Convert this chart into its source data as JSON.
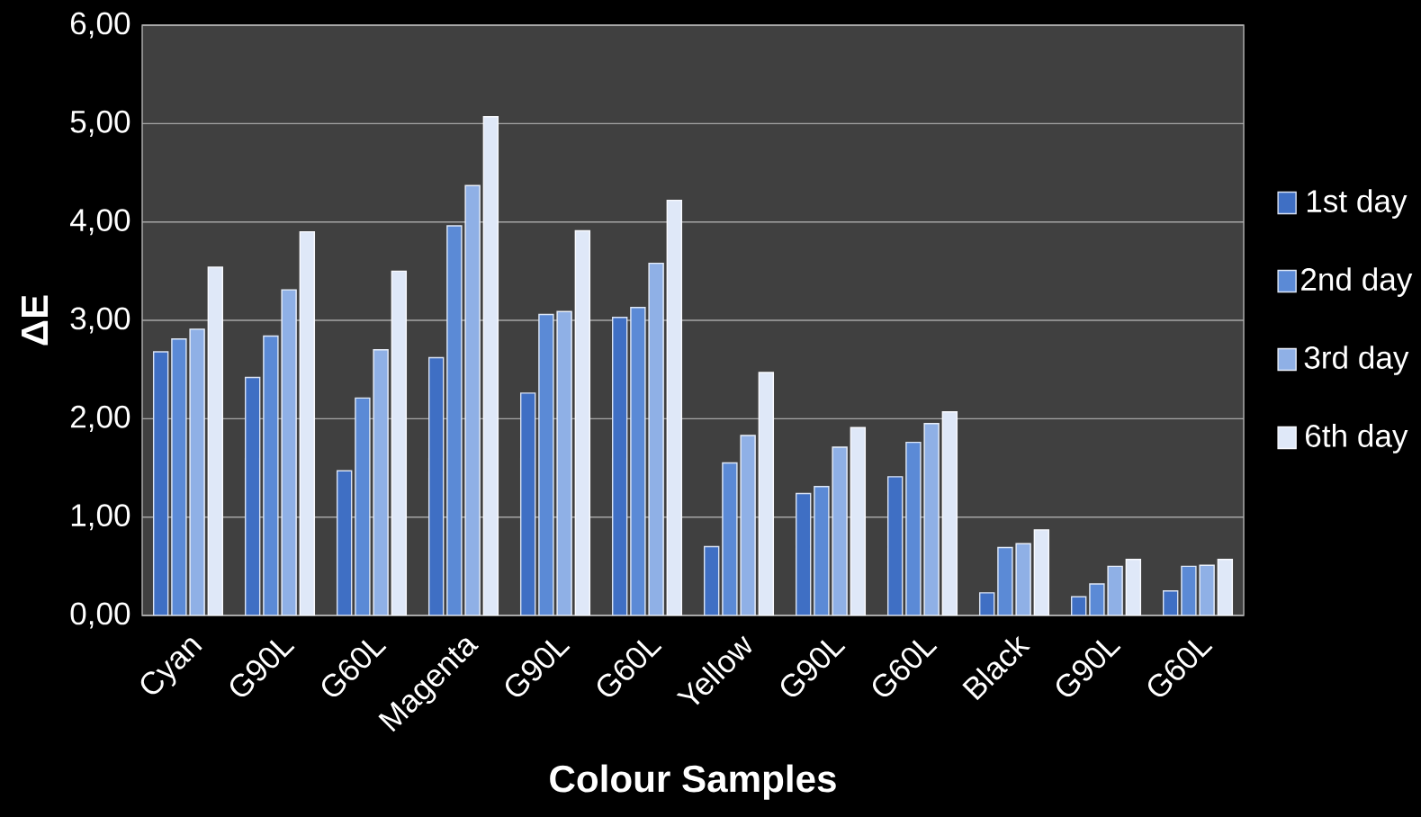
{
  "chart_data": {
    "type": "bar",
    "xlabel": "Colour Samples",
    "ylabel": "ΔE",
    "categories": [
      "Cyan",
      "G90L",
      "G60L",
      "Magenta",
      "G90L",
      "G60L",
      "Yellow",
      "G90L",
      "G60L",
      "Black",
      "G90L",
      "G60L"
    ],
    "series": [
      {
        "name": "1st day",
        "color": "#3f6fc4",
        "values": [
          2.68,
          2.42,
          1.47,
          2.62,
          2.26,
          3.03,
          0.7,
          1.24,
          1.41,
          0.23,
          0.19,
          0.25
        ]
      },
      {
        "name": "2nd day",
        "color": "#5b8ad6",
        "values": [
          2.81,
          2.84,
          2.21,
          3.96,
          3.06,
          3.13,
          1.55,
          1.31,
          1.76,
          0.69,
          0.32,
          0.5
        ]
      },
      {
        "name": "3rd day",
        "color": "#8fb0e6",
        "values": [
          2.91,
          3.31,
          2.7,
          4.37,
          3.09,
          3.58,
          1.83,
          1.71,
          1.95,
          0.73,
          0.5,
          0.51
        ]
      },
      {
        "name": "6th day",
        "color": "#dfe8f8",
        "values": [
          3.54,
          3.9,
          3.5,
          5.07,
          3.91,
          4.22,
          2.47,
          1.91,
          2.07,
          0.87,
          0.57,
          0.57
        ]
      }
    ],
    "ylim": [
      0,
      6
    ],
    "yticks": [
      {
        "value": 0,
        "label": "0,00"
      },
      {
        "value": 1,
        "label": "1,00"
      },
      {
        "value": 2,
        "label": "2,00"
      },
      {
        "value": 3,
        "label": "3,00"
      },
      {
        "value": 4,
        "label": "4,00"
      },
      {
        "value": 5,
        "label": "5,00"
      },
      {
        "value": 6,
        "label": "6,00"
      }
    ],
    "grid": "y",
    "legend": "right"
  }
}
